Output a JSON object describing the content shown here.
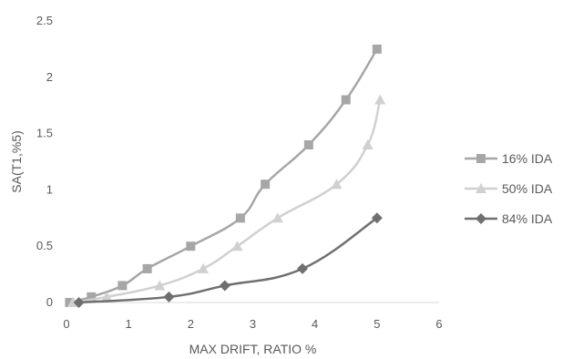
{
  "chart_data": {
    "type": "line",
    "title": "",
    "xlabel": "MAX DRIFT, RATIO %",
    "ylabel": "SA(T1,%5)",
    "xlim": [
      0,
      6
    ],
    "ylim": [
      0,
      2.5
    ],
    "x_ticks": [
      "0",
      "1",
      "2",
      "3",
      "4",
      "5",
      "6"
    ],
    "y_ticks": [
      "0",
      "0.5",
      "1",
      "1.5",
      "2",
      "2.5"
    ],
    "grid": false,
    "legend_position": "right",
    "series": [
      {
        "name": "16% IDA",
        "marker": "square",
        "color": "#a6a6a6",
        "x": [
          0.05,
          0.4,
          0.9,
          1.3,
          2.0,
          2.8,
          3.2,
          3.9,
          4.5,
          5.0
        ],
        "y": [
          0.0,
          0.05,
          0.15,
          0.3,
          0.5,
          0.75,
          1.05,
          1.4,
          1.8,
          2.25
        ]
      },
      {
        "name": "50% IDA",
        "marker": "triangle",
        "color": "#d0d0d0",
        "x": [
          0.1,
          0.65,
          1.5,
          2.2,
          2.75,
          3.4,
          4.35,
          4.85,
          5.05
        ],
        "y": [
          0.0,
          0.05,
          0.15,
          0.3,
          0.5,
          0.75,
          1.05,
          1.4,
          1.8
        ]
      },
      {
        "name": "84% IDA",
        "marker": "diamond",
        "color": "#6f6f6f",
        "x": [
          0.2,
          1.65,
          2.55,
          3.8,
          5.0
        ],
        "y": [
          0.0,
          0.05,
          0.15,
          0.3,
          0.75
        ]
      }
    ]
  }
}
